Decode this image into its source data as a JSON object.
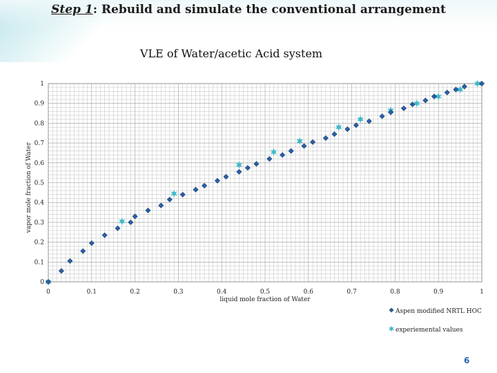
{
  "slide": {
    "step_label": "Step 1",
    "title_rest": ": Rebuild and simulate the conventional arrangement",
    "page_number": "6"
  },
  "chart_data": {
    "type": "scatter",
    "title": "VLE of Water/acetic Acid system",
    "xlabel": "liquid mole fraction of Water",
    "ylabel": "vapor mole fraction of Water",
    "xlim": [
      0,
      1
    ],
    "ylim": [
      0,
      1
    ],
    "x_ticks": [
      "0",
      "0.1",
      "0.2",
      "0.3",
      "0.4",
      "0.5",
      "0.6",
      "0.7",
      "0.8",
      "0.9",
      "1"
    ],
    "y_ticks": [
      "0",
      "0.1",
      "0.2",
      "0.3",
      "0.4",
      "0.5",
      "0.6",
      "0.7",
      "0.8",
      "0.9",
      "1"
    ],
    "grid": true,
    "legend_position": "bottom-right",
    "series": [
      {
        "name": "Aspen modified NRTL HOC",
        "color": "#2a5fa8",
        "marker": "diamond",
        "points": [
          [
            0.0,
            0.0
          ],
          [
            0.03,
            0.055
          ],
          [
            0.05,
            0.105
          ],
          [
            0.08,
            0.155
          ],
          [
            0.1,
            0.195
          ],
          [
            0.13,
            0.235
          ],
          [
            0.16,
            0.27
          ],
          [
            0.19,
            0.3
          ],
          [
            0.2,
            0.33
          ],
          [
            0.23,
            0.36
          ],
          [
            0.26,
            0.385
          ],
          [
            0.28,
            0.415
          ],
          [
            0.31,
            0.44
          ],
          [
            0.34,
            0.465
          ],
          [
            0.36,
            0.485
          ],
          [
            0.39,
            0.51
          ],
          [
            0.41,
            0.53
          ],
          [
            0.44,
            0.555
          ],
          [
            0.46,
            0.575
          ],
          [
            0.48,
            0.595
          ],
          [
            0.51,
            0.62
          ],
          [
            0.54,
            0.64
          ],
          [
            0.56,
            0.66
          ],
          [
            0.59,
            0.685
          ],
          [
            0.61,
            0.705
          ],
          [
            0.64,
            0.725
          ],
          [
            0.66,
            0.745
          ],
          [
            0.69,
            0.77
          ],
          [
            0.71,
            0.79
          ],
          [
            0.74,
            0.81
          ],
          [
            0.77,
            0.835
          ],
          [
            0.79,
            0.855
          ],
          [
            0.82,
            0.875
          ],
          [
            0.84,
            0.895
          ],
          [
            0.87,
            0.915
          ],
          [
            0.89,
            0.935
          ],
          [
            0.92,
            0.955
          ],
          [
            0.94,
            0.97
          ],
          [
            0.96,
            0.985
          ],
          [
            1.0,
            1.0
          ]
        ]
      },
      {
        "name": "experiemental values",
        "color": "#3fb8c9",
        "marker": "star",
        "points": [
          [
            0.0,
            0.0
          ],
          [
            0.17,
            0.305
          ],
          [
            0.29,
            0.445
          ],
          [
            0.44,
            0.59
          ],
          [
            0.52,
            0.655
          ],
          [
            0.58,
            0.71
          ],
          [
            0.67,
            0.78
          ],
          [
            0.72,
            0.82
          ],
          [
            0.79,
            0.865
          ],
          [
            0.85,
            0.9
          ],
          [
            0.9,
            0.935
          ],
          [
            0.95,
            0.97
          ],
          [
            0.99,
            1.0
          ]
        ]
      }
    ]
  }
}
